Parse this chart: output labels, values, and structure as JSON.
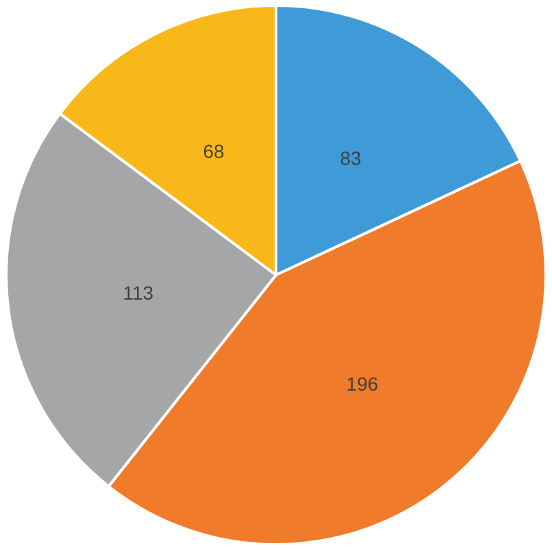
{
  "chart_data": {
    "type": "pie",
    "categories": [
      null,
      null,
      null,
      null
    ],
    "values": [
      83,
      196,
      113,
      68
    ],
    "colors": [
      "#3f9bd7",
      "#f07b2b",
      "#a5a6a8",
      "#f9b81a"
    ],
    "data_labels": true
  }
}
